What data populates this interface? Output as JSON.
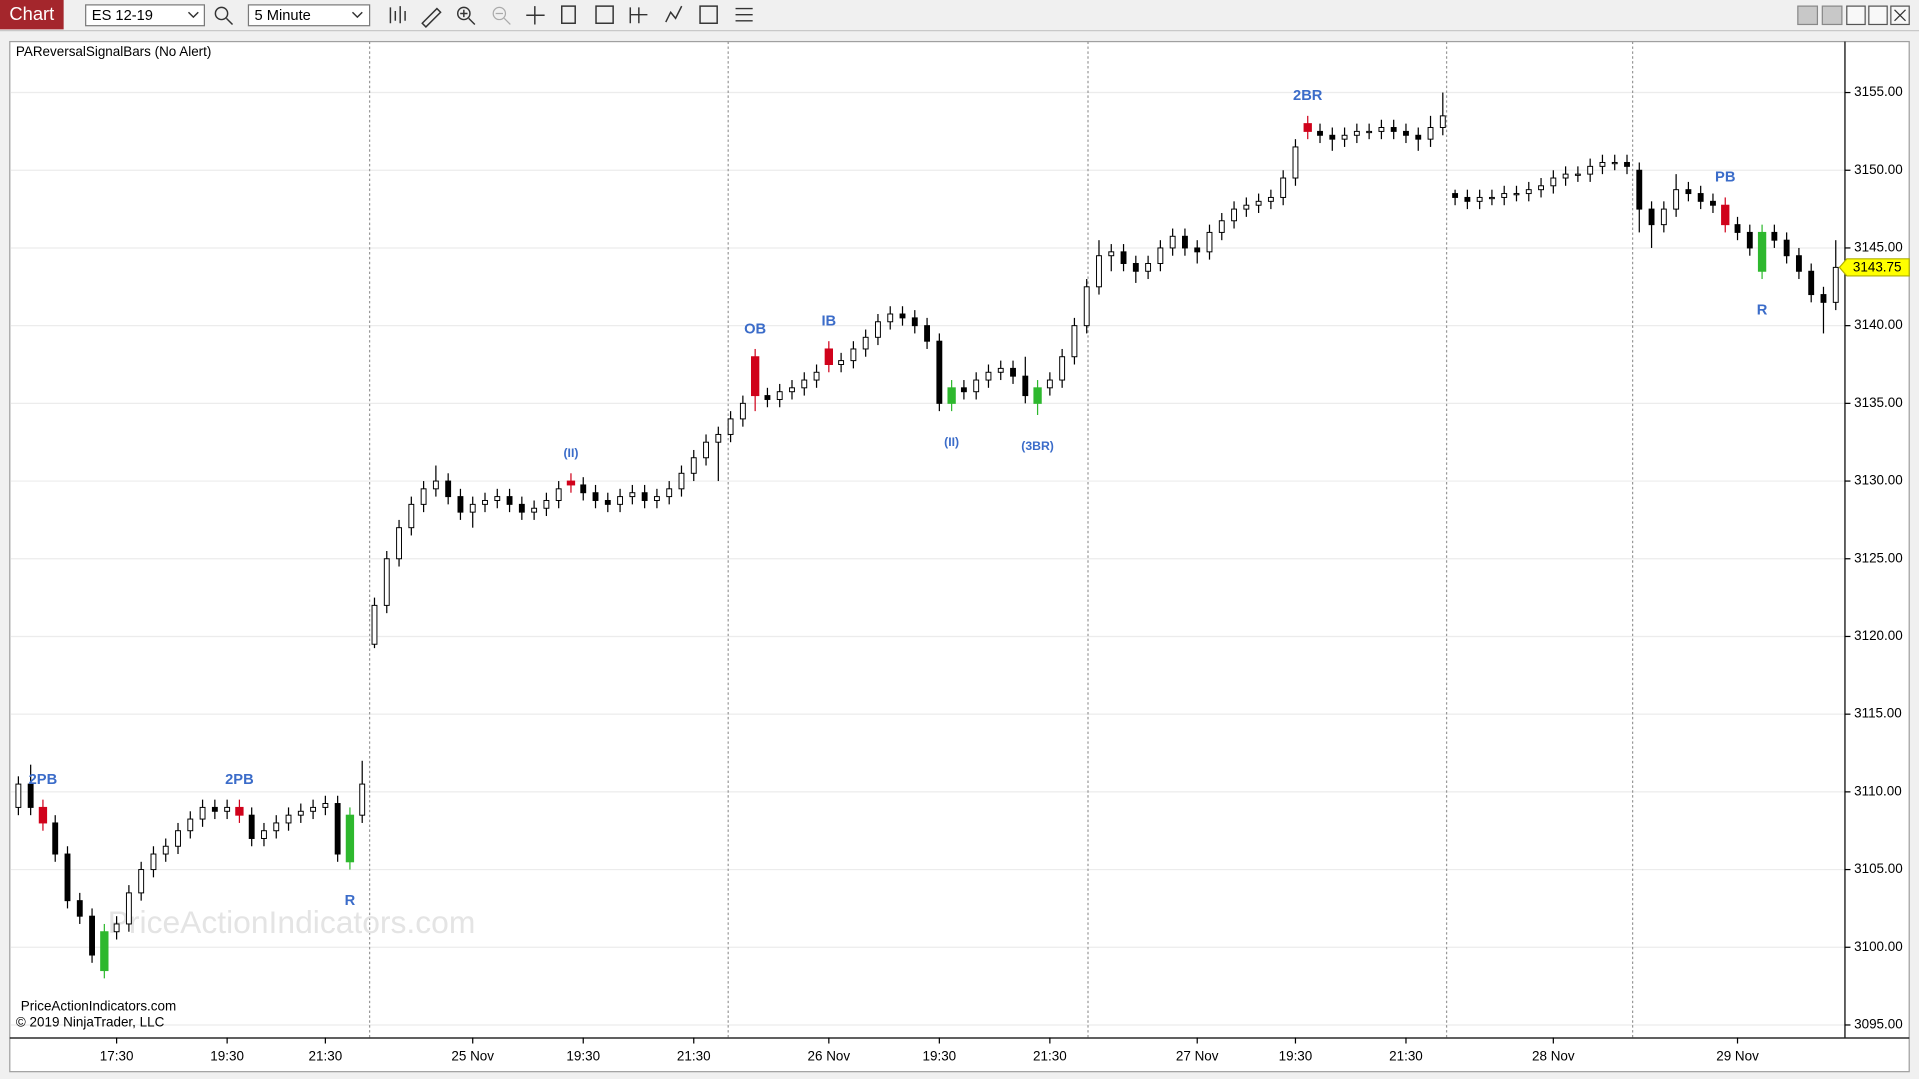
{
  "toolbar": {
    "tab": "Chart",
    "instrument": "ES 12-19",
    "interval": "5 Minute"
  },
  "indicator_label": "PAReversalSignalBars (No Alert)",
  "watermark": "PriceActionIndicators.com",
  "footer": {
    "site": "PriceActionIndicators.com",
    "copyright": "© 2019 NinjaTrader, LLC"
  },
  "chart_data": {
    "type": "candlestick",
    "categories": [
      null,
      null,
      null,
      null,
      null,
      null,
      null,
      null,
      "17:30",
      null,
      null,
      null,
      null,
      null,
      null,
      null,
      null,
      "19:30",
      null,
      null,
      null,
      null,
      null,
      null,
      null,
      "21:30",
      null,
      null,
      null,
      null,
      null,
      null,
      null,
      null,
      null,
      null,
      null,
      "25 Nov",
      null,
      null,
      null,
      null,
      null,
      null,
      null,
      null,
      "19:30",
      null,
      null,
      null,
      null,
      null,
      null,
      null,
      null,
      "21:30",
      null,
      null,
      null,
      null,
      null,
      null,
      null,
      null,
      null,
      null,
      "26 Nov",
      null,
      null,
      null,
      null,
      null,
      null,
      null,
      null,
      "19:30",
      null,
      null,
      null,
      null,
      null,
      null,
      null,
      null,
      "21:30",
      null,
      null,
      null,
      null,
      null,
      null,
      null,
      null,
      null,
      null,
      null,
      "27 Nov",
      null,
      null,
      null,
      null,
      null,
      null,
      null,
      "19:30",
      null,
      null,
      null,
      null,
      null,
      null,
      null,
      null,
      "21:30",
      null,
      null,
      null,
      null,
      null,
      null,
      null,
      null,
      null,
      null,
      null,
      "28 Nov",
      null,
      null,
      null,
      null,
      null,
      null,
      null,
      null,
      null,
      null,
      null,
      null,
      null,
      null,
      "29 Nov",
      null,
      null,
      null,
      null,
      null,
      null,
      null,
      null
    ],
    "open": [
      3109,
      3110.5,
      3109,
      3108,
      3106,
      3103,
      3102,
      3098.5,
      3101,
      3101.5,
      3103.5,
      3105,
      3106,
      3106.5,
      3107.5,
      3108.25,
      3109,
      3108.75,
      3109,
      3108.5,
      3107,
      3107.5,
      3108,
      3108.5,
      3108.75,
      3109,
      3109.25,
      3105.5,
      3108.5,
      3119.5,
      3122,
      3125,
      3127,
      3128.5,
      3129.5,
      3130,
      3129,
      3128,
      3128.5,
      3128.75,
      3129,
      3128.5,
      3128,
      3128.25,
      3128.75,
      3130,
      3129.75,
      3129.25,
      3128.75,
      3128.5,
      3129,
      3129.25,
      3128.75,
      3129,
      3129.5,
      3130.5,
      3131.5,
      3132.5,
      3133,
      3134,
      3138,
      3135.5,
      3135.25,
      3135.75,
      3136,
      3136.5,
      3138.5,
      3137.5,
      3137.75,
      3138.5,
      3139.25,
      3140.25,
      3140.75,
      3140.5,
      3140,
      3139,
      3135,
      3136,
      3135.75,
      3136.5,
      3137,
      3137.25,
      3136.75,
      3135,
      3136,
      3136.5,
      3138,
      3140,
      3142.5,
      3144.5,
      3144.75,
      3144,
      3143.5,
      3144,
      3145,
      3145.75,
      3145,
      3144.75,
      3146,
      3146.75,
      3147.5,
      3147.75,
      3148,
      3148.25,
      3149.5,
      3153,
      3152.5,
      3152.25,
      3152,
      3152.25,
      3152.5,
      3152.5,
      3152.75,
      3152.5,
      3152.25,
      3152,
      3152.75,
      3148.5,
      3148.25,
      3148,
      3148.25,
      3148.25,
      3148.5,
      3148.5,
      3148.75,
      3149,
      3149.5,
      3149.75,
      3149.75,
      3150.25,
      3150.5,
      3150.5,
      3150,
      3147.5,
      3146.5,
      3147.5,
      3148.75,
      3148.5,
      3148,
      3147.75,
      3146.5,
      3146,
      3143.5,
      3146,
      3145.5,
      3144.5,
      3143.5,
      3142,
      3141.5
    ],
    "high": [
      3111,
      3111.75,
      3109.5,
      3108.5,
      3106.5,
      3103.5,
      3102.5,
      3101.5,
      3102,
      3104,
      3105.5,
      3106.5,
      3107,
      3108,
      3108.75,
      3109.5,
      3109.5,
      3109.5,
      3109.5,
      3109,
      3108,
      3108.5,
      3109,
      3109.25,
      3109.5,
      3109.75,
      3109.75,
      3109,
      3112,
      3122.5,
      3125.5,
      3127.5,
      3129,
      3130,
      3131,
      3130.5,
      3129.5,
      3129,
      3129.25,
      3129.5,
      3129.5,
      3129,
      3128.75,
      3129.25,
      3130,
      3130.5,
      3130.25,
      3129.75,
      3129.25,
      3129.5,
      3129.75,
      3129.75,
      3129.5,
      3130,
      3131,
      3132,
      3133,
      3133.5,
      3134.5,
      3135.5,
      3138.5,
      3136,
      3136.25,
      3136.5,
      3137,
      3137.5,
      3139,
      3138.25,
      3139,
      3139.75,
      3140.75,
      3141.25,
      3141.25,
      3141,
      3140.5,
      3139.5,
      3136.5,
      3136.5,
      3137,
      3137.5,
      3137.75,
      3137.75,
      3138,
      3136.5,
      3137,
      3138.5,
      3140.5,
      3143,
      3145.5,
      3145.25,
      3145.25,
      3144.5,
      3144.5,
      3145.5,
      3146.25,
      3146.25,
      3145.5,
      3146.5,
      3147.25,
      3148,
      3148.25,
      3148.5,
      3148.75,
      3150,
      3152,
      3153.5,
      3153,
      3152.75,
      3152.75,
      3153,
      3153,
      3153.25,
      3153.25,
      3153,
      3152.75,
      3153.5,
      3155,
      3148.75,
      3148.75,
      3148.75,
      3148.75,
      3149,
      3149,
      3149.25,
      3149.5,
      3150,
      3150.25,
      3150.25,
      3150.75,
      3151,
      3151,
      3151,
      3150.5,
      3148,
      3148,
      3149.75,
      3149.25,
      3149,
      3148.5,
      3148.25,
      3147,
      3146.5,
      3146.5,
      3146.5,
      3146,
      3145,
      3144,
      3142.5,
      3145.5
    ],
    "low": [
      3108.5,
      3108.5,
      3107.5,
      3105.5,
      3102.5,
      3101.5,
      3099,
      3098,
      3100.5,
      3101,
      3103,
      3104.5,
      3105.5,
      3106,
      3107,
      3107.75,
      3108.25,
      3108.25,
      3108,
      3106.5,
      3106.5,
      3107,
      3107.5,
      3108,
      3108.25,
      3108.5,
      3105.5,
      3105,
      3108,
      3119.25,
      3121.5,
      3124.5,
      3126.5,
      3128,
      3129,
      3128.5,
      3127.5,
      3127,
      3128,
      3128.25,
      3128,
      3127.5,
      3127.5,
      3127.75,
      3128.25,
      3129.25,
      3128.75,
      3128.25,
      3128,
      3128,
      3128.5,
      3128.25,
      3128.25,
      3128.5,
      3129,
      3130,
      3131,
      3130,
      3132.5,
      3133.5,
      3134.5,
      3134.75,
      3134.75,
      3135.25,
      3135.5,
      3136,
      3137,
      3137,
      3137.25,
      3138,
      3138.75,
      3139.75,
      3140,
      3139.5,
      3138.5,
      3134.5,
      3134.5,
      3135.25,
      3135.25,
      3136,
      3136.5,
      3136.25,
      3135,
      3134.25,
      3135.5,
      3136,
      3137.5,
      3139.5,
      3142,
      3143.5,
      3143.5,
      3142.75,
      3143,
      3143.5,
      3144.5,
      3144.5,
      3144,
      3144.25,
      3145.5,
      3146.25,
      3147,
      3147.25,
      3147.5,
      3147.75,
      3149,
      3152,
      3151.75,
      3151.25,
      3151.5,
      3151.75,
      3152,
      3152,
      3152,
      3151.75,
      3151.25,
      3151.5,
      3152.25,
      3147.75,
      3147.5,
      3147.5,
      3147.75,
      3147.75,
      3148,
      3148,
      3148.25,
      3148.5,
      3149,
      3149.25,
      3149.25,
      3149.75,
      3150,
      3149.75,
      3146,
      3145,
      3146,
      3147,
      3148,
      3147.5,
      3147.25,
      3146,
      3145.5,
      3144.5,
      3143,
      3145,
      3144,
      3143,
      3141.5,
      3139.5,
      3141
    ],
    "close": [
      3110.5,
      3109,
      3108,
      3106,
      3103,
      3102,
      3099.5,
      3101,
      3101.5,
      3103.5,
      3105,
      3106,
      3106.5,
      3107.5,
      3108.25,
      3109,
      3108.75,
      3109,
      3108.5,
      3107,
      3107.5,
      3108,
      3108.5,
      3108.75,
      3109,
      3109.25,
      3106,
      3108.5,
      3110.5,
      3122,
      3125,
      3127,
      3128.5,
      3129.5,
      3130,
      3129,
      3128,
      3128.5,
      3128.75,
      3129,
      3128.5,
      3128,
      3128.25,
      3128.75,
      3129.5,
      3129.75,
      3129.25,
      3128.75,
      3128.5,
      3129,
      3129.25,
      3128.75,
      3129,
      3129.5,
      3130.5,
      3131.5,
      3132.5,
      3133,
      3134,
      3135,
      3135.5,
      3135.25,
      3135.75,
      3136,
      3136.5,
      3137,
      3137.5,
      3137.75,
      3138.5,
      3139.25,
      3140.25,
      3140.75,
      3140.5,
      3140,
      3139,
      3135,
      3136,
      3135.75,
      3136.5,
      3137,
      3137.25,
      3136.75,
      3135.5,
      3136,
      3136.5,
      3138,
      3140,
      3142.5,
      3144.5,
      3144.75,
      3144,
      3143.5,
      3144,
      3145,
      3145.75,
      3145,
      3144.75,
      3146,
      3146.75,
      3147.5,
      3147.75,
      3148,
      3148.25,
      3149.5,
      3151.5,
      3152.5,
      3152.25,
      3152,
      3152.25,
      3152.5,
      3152.5,
      3152.75,
      3152.5,
      3152.25,
      3152,
      3152.75,
      3153.5,
      3148.25,
      3148,
      3148.25,
      3148.25,
      3148.5,
      3148.5,
      3148.75,
      3149,
      3149.5,
      3149.75,
      3149.75,
      3150.25,
      3150.5,
      3150.5,
      3150.25,
      3147.5,
      3146.5,
      3147.5,
      3148.75,
      3148.5,
      3148,
      3147.75,
      3146.5,
      3146,
      3145,
      3146,
      3145.5,
      3144.5,
      3143.5,
      3142,
      3141.5,
      3143.75
    ],
    "up_color": "#ffffff",
    "down_color": "#000000",
    "outline_color": "#000000",
    "highlights": [
      {
        "index": 2,
        "color": "#d0021b"
      },
      {
        "index": 7,
        "color": "#2eb82e"
      },
      {
        "index": 18,
        "color": "#d0021b"
      },
      {
        "index": 27,
        "color": "#2eb82e"
      },
      {
        "index": 45,
        "color": "#d0021b"
      },
      {
        "index": 60,
        "color": "#d0021b"
      },
      {
        "index": 66,
        "color": "#d0021b"
      },
      {
        "index": 76,
        "color": "#2eb82e"
      },
      {
        "index": 83,
        "color": "#2eb82e"
      },
      {
        "index": 105,
        "color": "#d0021b"
      },
      {
        "index": 139,
        "color": "#d0021b"
      },
      {
        "index": 142,
        "color": "#2eb82e"
      }
    ],
    "annotation_color": "#3b6cc9",
    "annotations": [
      {
        "text": "2PB",
        "index": 2,
        "side": "above"
      },
      {
        "text": "2PB",
        "index": 18,
        "side": "above"
      },
      {
        "text": "R",
        "index": 27,
        "side": "below"
      },
      {
        "text": "(II)",
        "index": 45,
        "side": "above"
      },
      {
        "text": "OB",
        "index": 60,
        "side": "above"
      },
      {
        "text": "IB",
        "index": 66,
        "side": "above"
      },
      {
        "text": "(II)",
        "index": 76,
        "side": "below"
      },
      {
        "text": "(3BR)",
        "index": 83,
        "side": "below"
      },
      {
        "text": "2BR",
        "index": 105,
        "side": "above"
      },
      {
        "text": "PB",
        "index": 139,
        "side": "above"
      },
      {
        "text": "R",
        "index": 142,
        "side": "below"
      }
    ],
    "ylim": [
      3094.2,
      3158.2
    ],
    "yticks": [
      {
        "value": 3095,
        "label": "3095.00"
      },
      {
        "value": 3100,
        "label": "3100.00"
      },
      {
        "value": 3105,
        "label": "3105.00"
      },
      {
        "value": 3110,
        "label": "3110.00"
      },
      {
        "value": 3115,
        "label": "3115.00"
      },
      {
        "value": 3120,
        "label": "3120.00"
      },
      {
        "value": 3125,
        "label": "3125.00"
      },
      {
        "value": 3130,
        "label": "3130.00"
      },
      {
        "value": 3135,
        "label": "3135.00"
      },
      {
        "value": 3140,
        "label": "3140.00"
      },
      {
        "value": 3145,
        "label": "3145.00"
      },
      {
        "value": 3150,
        "label": "3150.00"
      },
      {
        "value": 3155,
        "label": "3155.00"
      }
    ],
    "grid": true,
    "last_price_color": "#ffff00"
  }
}
